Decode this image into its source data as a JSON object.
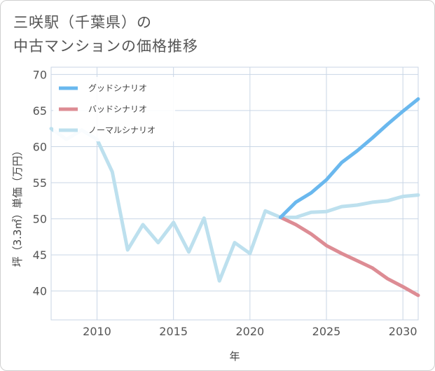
{
  "title_lines": [
    "三咲駅（千葉県）の",
    "中古マンションの価格推移"
  ],
  "chart_data": {
    "type": "line",
    "xlabel": "年",
    "ylabel": "坪（3.3㎡）単価（万円）",
    "xlim": [
      2007,
      2031
    ],
    "ylim": [
      36,
      71
    ],
    "xticks": [
      2010,
      2015,
      2020,
      2025,
      2030
    ],
    "yticks": [
      40,
      45,
      50,
      55,
      60,
      65,
      70
    ],
    "grid": true,
    "legend_position": "top-left",
    "series": [
      {
        "name": "グッドシナリオ",
        "color": "#6ab8ee",
        "x": [
          2022,
          2023,
          2024,
          2025,
          2026,
          2027,
          2028,
          2029,
          2030,
          2031
        ],
        "values": [
          50.2,
          52.3,
          53.6,
          55.4,
          57.8,
          59.4,
          61.2,
          63.1,
          64.9,
          66.6
        ]
      },
      {
        "name": "バッドシナリオ",
        "color": "#dd8c94",
        "x": [
          2022,
          2023,
          2024,
          2025,
          2026,
          2027,
          2028,
          2029,
          2030,
          2031
        ],
        "values": [
          50.2,
          49.2,
          47.9,
          46.3,
          45.2,
          44.2,
          43.2,
          41.7,
          40.6,
          39.4
        ]
      },
      {
        "name": "ノーマルシナリオ",
        "color": "#bde0ee",
        "x": [
          2007,
          2008,
          2009,
          2010,
          2011,
          2012,
          2013,
          2014,
          2015,
          2016,
          2017,
          2018,
          2019,
          2020,
          2021,
          2022,
          2023,
          2024,
          2025,
          2026,
          2027,
          2028,
          2029,
          2030,
          2031
        ],
        "values": [
          62.5,
          61.0,
          62.3,
          61.0,
          56.5,
          45.7,
          49.2,
          46.7,
          49.5,
          45.4,
          50.1,
          41.4,
          46.7,
          45.2,
          51.1,
          50.2,
          50.2,
          50.9,
          51.0,
          51.7,
          51.9,
          52.3,
          52.5,
          53.1,
          53.3
        ]
      }
    ]
  }
}
